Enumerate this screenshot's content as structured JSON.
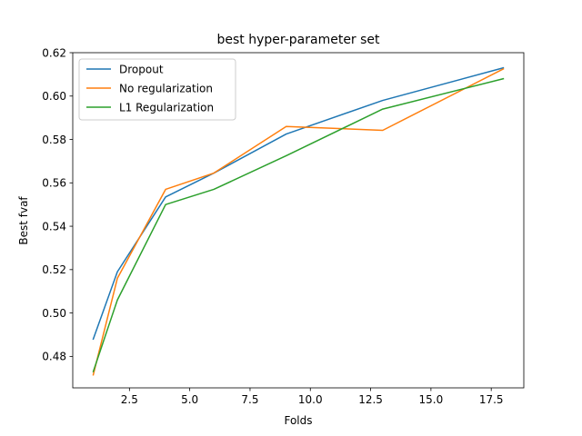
{
  "chart_data": {
    "type": "line",
    "title": "best hyper-parameter set",
    "xlabel": "Folds",
    "ylabel": "Best fvaf",
    "xlim": [
      0.15,
      18.85
    ],
    "ylim": [
      0.4655,
      0.62
    ],
    "xticks": [
      2.5,
      5.0,
      7.5,
      10.0,
      12.5,
      15.0,
      17.5
    ],
    "xtick_labels": [
      "2.5",
      "5.0",
      "7.5",
      "10.0",
      "12.5",
      "15.0",
      "17.5"
    ],
    "yticks": [
      0.48,
      0.5,
      0.52,
      0.54,
      0.56,
      0.58,
      0.6,
      0.62
    ],
    "ytick_labels": [
      "0.48",
      "0.50",
      "0.52",
      "0.54",
      "0.56",
      "0.58",
      "0.60",
      "0.62"
    ],
    "grid": false,
    "legend_position": "top-left",
    "series": [
      {
        "name": "Dropout",
        "color": "#1f77b4",
        "x": [
          1,
          2,
          4,
          6,
          9,
          13,
          18
        ],
        "y": [
          0.488,
          0.519,
          0.5535,
          0.5645,
          0.5825,
          0.598,
          0.613
        ]
      },
      {
        "name": "No regularization",
        "color": "#ff7f0e",
        "x": [
          1,
          2,
          4,
          6,
          9,
          13,
          18
        ],
        "y": [
          0.4715,
          0.516,
          0.557,
          0.5645,
          0.586,
          0.5842,
          0.6125
        ]
      },
      {
        "name": "L1 Regularization",
        "color": "#2ca02c",
        "x": [
          1,
          2,
          4,
          6,
          9,
          13,
          18
        ],
        "y": [
          0.473,
          0.506,
          0.55,
          0.557,
          0.5725,
          0.594,
          0.608
        ]
      }
    ]
  }
}
